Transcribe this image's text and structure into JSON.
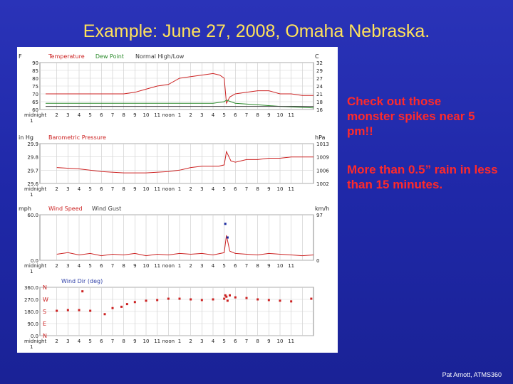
{
  "slide": {
    "title": "Example: June 27, 2008, Omaha Nebraska.",
    "note_1": "Check out those monster spikes near 5 pm!!",
    "note_2": "More than 0.5” rain in less than 15 minutes.",
    "credit": "Pat Arnott, ATMS360"
  },
  "colors": {
    "background": "#2232b0",
    "title": "#ffe25a",
    "note": "#ff2a2a",
    "temperature": "#cc2222",
    "dew_point": "#2a8a2a",
    "normal": "#3a3a3a"
  },
  "x_axis_labels": [
    "midnight",
    "2",
    "3",
    "4",
    "5",
    "6",
    "7",
    "8",
    "9",
    "10",
    "11",
    "noon",
    "1",
    "2",
    "3",
    "4",
    "5",
    "6",
    "7",
    "8",
    "9",
    "10",
    "11"
  ],
  "midnight_sub": "1",
  "chart_data": [
    {
      "type": "line",
      "title": "",
      "legend": [
        "Temperature",
        "Dew Point",
        "Normal High/Low"
      ],
      "left_unit": "F",
      "right_unit": "C",
      "yticks_left": [
        "90",
        "85",
        "80",
        "75",
        "70",
        "65",
        "60"
      ],
      "yticks_right": [
        "32",
        "29",
        "27",
        "24",
        "21",
        "18",
        "16"
      ],
      "ylim": [
        60,
        90
      ],
      "series": [
        {
          "name": "Temperature",
          "x": [
            0,
            2,
            3,
            4,
            5,
            6,
            7,
            8,
            9,
            10,
            11,
            12,
            13,
            14,
            15,
            15.6,
            16,
            16.2,
            16.5,
            17,
            18,
            19,
            20,
            21,
            22,
            23,
            24
          ],
          "values": [
            70,
            70,
            70,
            70,
            70,
            70,
            70,
            71,
            73,
            75,
            76,
            80,
            81,
            82,
            83,
            82,
            80,
            64,
            68,
            70,
            71,
            72,
            72,
            70,
            70,
            69,
            69
          ]
        },
        {
          "name": "Dew Point",
          "x": [
            0,
            3,
            6,
            9,
            12,
            15,
            16,
            16.2,
            17,
            19,
            21,
            24
          ],
          "values": [
            64,
            64,
            64,
            64,
            64,
            64,
            65,
            66,
            64,
            63,
            62,
            61
          ]
        },
        {
          "name": "Normal High/Low",
          "x": [
            0,
            24
          ],
          "values": [
            62,
            62
          ]
        }
      ]
    },
    {
      "type": "line",
      "title": "Barometric Pressure",
      "left_unit": "in Hg",
      "right_unit": "hPa",
      "yticks_left": [
        "29.9",
        "29.8",
        "29.7",
        "29.6"
      ],
      "yticks_right": [
        "1013",
        "1009",
        "1006",
        "1002"
      ],
      "ylim": [
        29.6,
        29.9
      ],
      "series": [
        {
          "name": "Barometric Pressure",
          "x": [
            1,
            3,
            5,
            7,
            9,
            11,
            12,
            13,
            14,
            15,
            15.5,
            16,
            16.2,
            16.6,
            17,
            18,
            19,
            20,
            21,
            22,
            23,
            24
          ],
          "values": [
            29.72,
            29.71,
            29.69,
            29.68,
            29.68,
            29.69,
            29.7,
            29.72,
            29.73,
            29.73,
            29.73,
            29.74,
            29.84,
            29.77,
            29.76,
            29.78,
            29.78,
            29.79,
            29.79,
            29.8,
            29.8,
            29.8
          ]
        }
      ]
    },
    {
      "type": "line",
      "title": "Wind Speed",
      "legend": [
        "Wind Speed",
        "Wind Gust"
      ],
      "left_unit": "mph",
      "right_unit": "km/h",
      "yticks_left": [
        "60.0",
        "0.0"
      ],
      "yticks_right": [
        "97",
        "0"
      ],
      "ylim": [
        0,
        60
      ],
      "series": [
        {
          "name": "Wind Speed",
          "x": [
            1,
            2,
            3,
            4,
            5,
            6,
            7,
            8,
            9,
            10,
            11,
            12,
            13,
            14,
            15,
            16,
            16.2,
            16.5,
            17,
            18,
            19,
            20,
            21,
            22,
            23,
            24
          ],
          "values": [
            8,
            10,
            7,
            9,
            6,
            8,
            7,
            9,
            6,
            8,
            7,
            9,
            8,
            9,
            7,
            10,
            33,
            12,
            9,
            8,
            7,
            9,
            8,
            7,
            6,
            7
          ]
        },
        {
          "name": "Wind Gust",
          "type": "scatter",
          "x": [
            16.1,
            16.3
          ],
          "values": [
            48,
            30
          ]
        }
      ]
    },
    {
      "type": "scatter",
      "title": "Wind Dir (deg)",
      "yticks_left": [
        "360.0",
        "270.0",
        "180.0",
        "90.0",
        "0.0"
      ],
      "compass": [
        "N",
        "W",
        "S",
        "E",
        "N"
      ],
      "ylim": [
        0,
        360
      ],
      "series": [
        {
          "name": "Wind Dir (deg)",
          "x": [
            1,
            2,
            3,
            3.3,
            4,
            5.3,
            6,
            6.8,
            7.3,
            8,
            9,
            10,
            11,
            12,
            13,
            14,
            15,
            16,
            16.1,
            16.2,
            16.3,
            16.5,
            17,
            18,
            19,
            20,
            21,
            22,
            23.8
          ],
          "values": [
            185,
            190,
            190,
            330,
            185,
            160,
            205,
            215,
            235,
            250,
            260,
            265,
            275,
            275,
            270,
            265,
            270,
            275,
            300,
            290,
            260,
            300,
            285,
            280,
            270,
            265,
            260,
            255,
            275
          ]
        }
      ]
    }
  ]
}
